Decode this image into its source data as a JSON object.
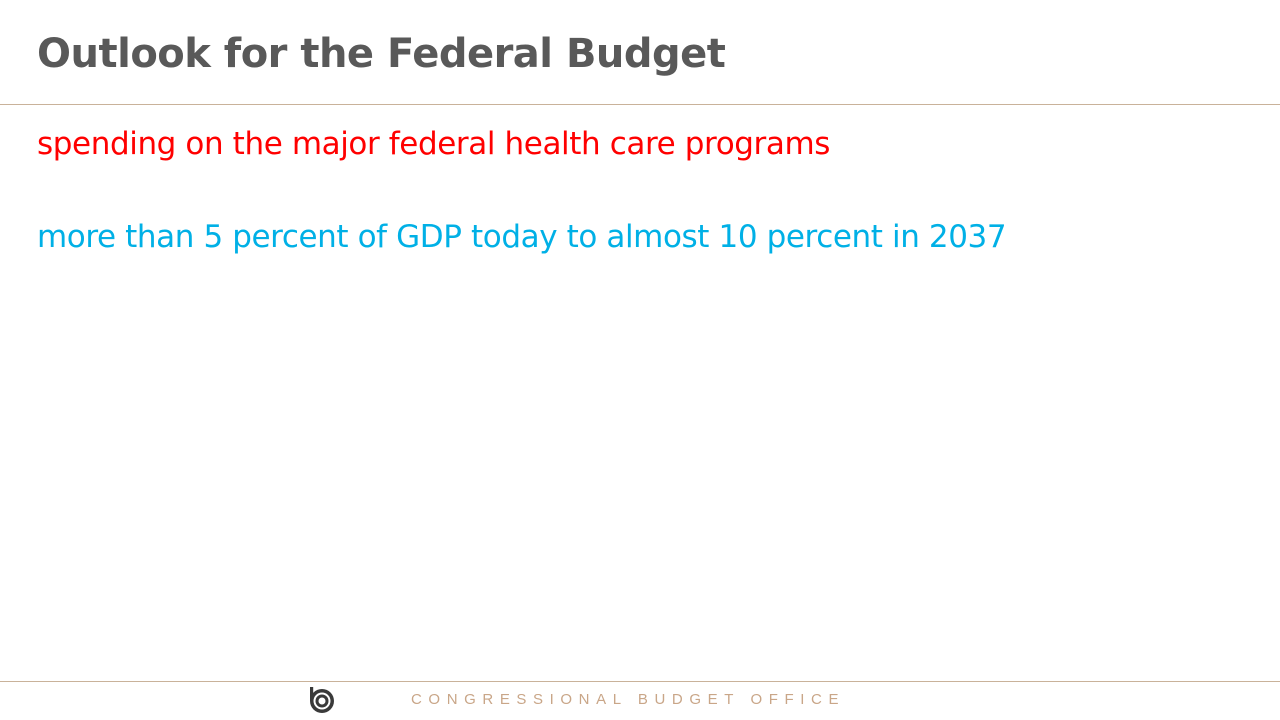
{
  "slide": {
    "title": "Outlook for the Federal Budget",
    "lines": [
      {
        "text": "spending on the major federal health care programs",
        "color": "#ff0000"
      },
      {
        "text": "more than 5 percent of GDP today to almost 10 percent in 2037",
        "color": "#00b0e6"
      }
    ]
  },
  "footer": {
    "organization": "CONGRESSIONAL BUDGET OFFICE",
    "logo_icon": "cbo-logo-icon",
    "text_color": "#c9a688",
    "rule_color": "#c9b29a"
  }
}
